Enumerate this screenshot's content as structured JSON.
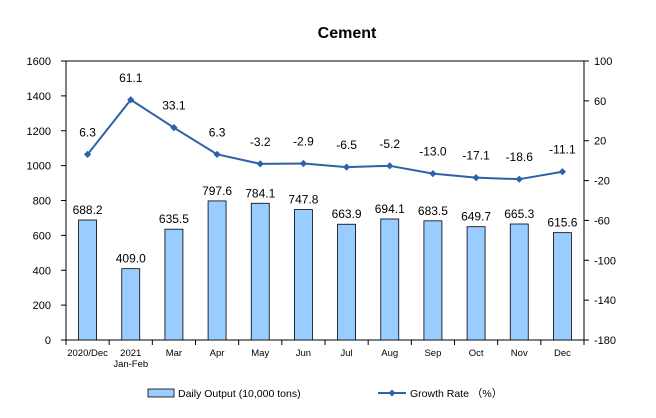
{
  "chart_data": {
    "type": "bar",
    "title": "Cement",
    "categories": [
      {
        "label": "2020/Dec",
        "label2": ""
      },
      {
        "label": "2021",
        "label2": "Jan-Feb"
      },
      {
        "label": "Mar",
        "label2": ""
      },
      {
        "label": "Apr",
        "label2": ""
      },
      {
        "label": "May",
        "label2": ""
      },
      {
        "label": "Jun",
        "label2": ""
      },
      {
        "label": "Jul",
        "label2": ""
      },
      {
        "label": "Aug",
        "label2": ""
      },
      {
        "label": "Sep",
        "label2": ""
      },
      {
        "label": "Oct",
        "label2": ""
      },
      {
        "label": "Nov",
        "label2": ""
      },
      {
        "label": "Dec",
        "label2": ""
      }
    ],
    "series": [
      {
        "name": "Daily Output (10,000 tons)",
        "type": "bar",
        "axis": "left",
        "color": "#99ccff",
        "values": [
          688.2,
          409.0,
          635.5,
          797.6,
          784.1,
          747.8,
          663.9,
          694.1,
          683.5,
          649.7,
          665.3,
          615.6
        ],
        "labels": [
          "688.2",
          "409.0",
          "635.5",
          "797.6",
          "784.1",
          "747.8",
          "663.9",
          "694.1",
          "683.5",
          "649.7",
          "665.3",
          "615.6"
        ]
      },
      {
        "name": "Growth Rate （%）",
        "type": "line",
        "axis": "right",
        "color": "#2e62a8",
        "values": [
          6.3,
          61.1,
          33.1,
          6.3,
          -3.2,
          -2.9,
          -6.5,
          -5.2,
          -13.0,
          -17.1,
          -18.6,
          -11.1
        ],
        "labels": [
          "6.3",
          "61.1",
          "33.1",
          "6.3",
          "-3.2",
          "-2.9",
          "-6.5",
          "-5.2",
          "-13.0",
          "-17.1",
          "-18.6",
          "-11.1"
        ]
      }
    ],
    "y_left": {
      "min": 0,
      "max": 1600,
      "step": 200
    },
    "y_right": {
      "min": -180,
      "max": 100,
      "step": 40
    },
    "legend_placement": "bottom",
    "grid": false
  }
}
